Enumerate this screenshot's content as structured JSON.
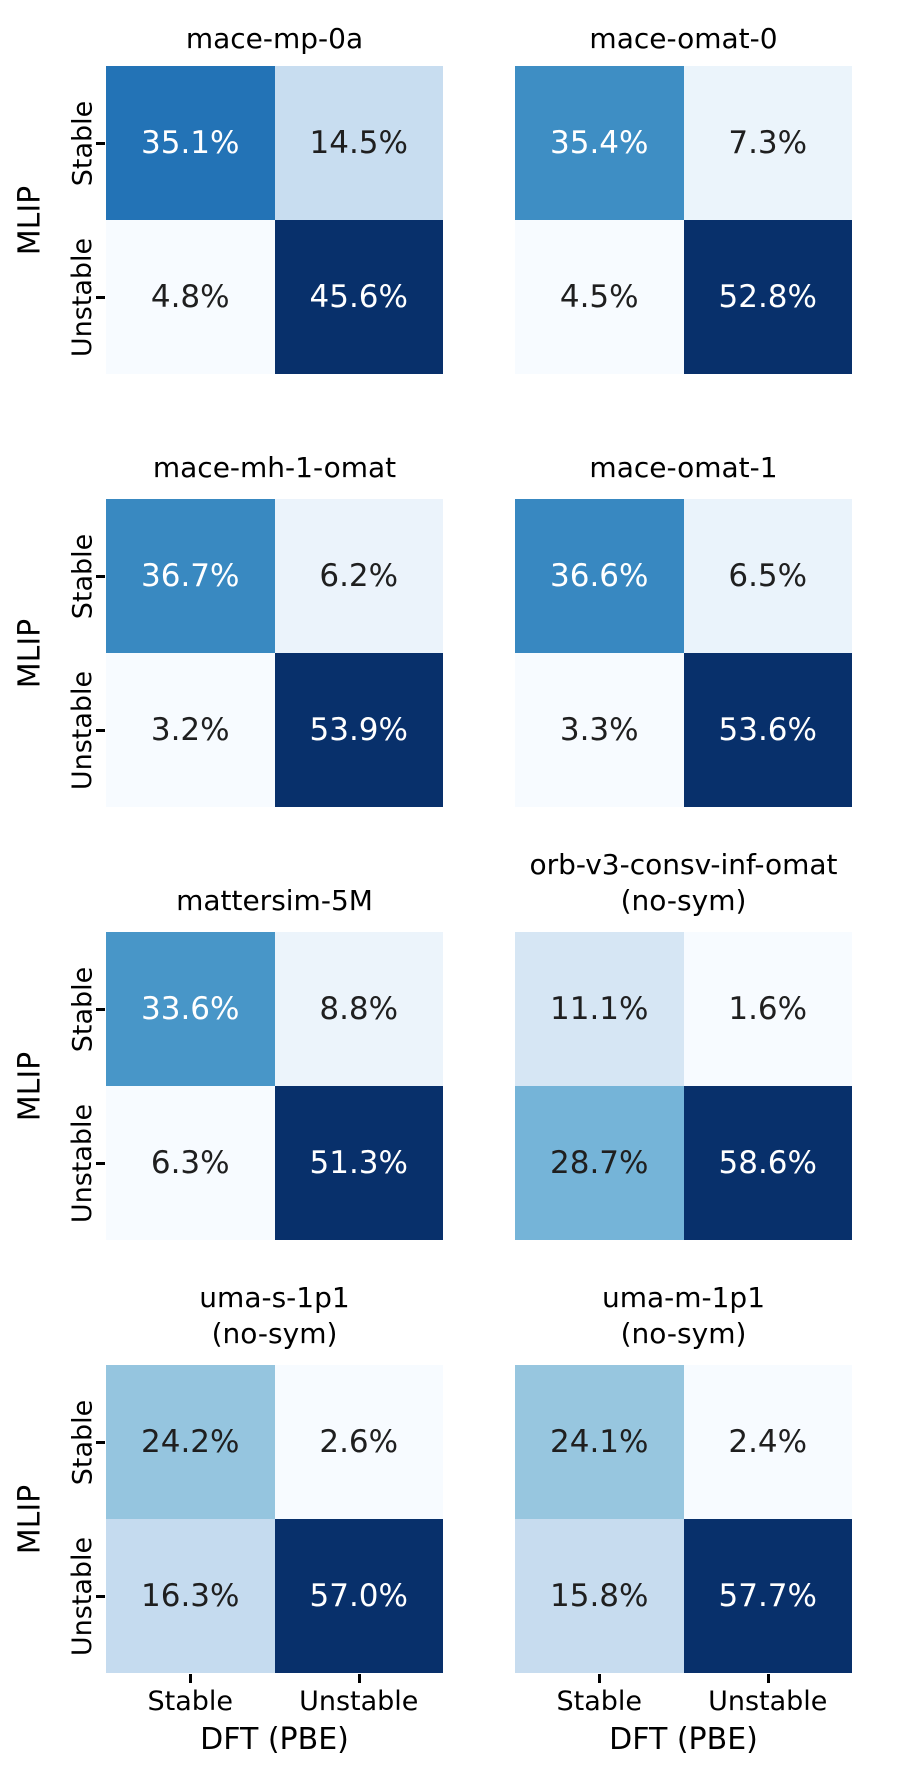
{
  "figure": {
    "name": "MLIP vs DFT stability confusion matrices"
  },
  "axes": {
    "xlabel": "DFT (PBE)",
    "ylabel": "MLIP",
    "xtick_labels": [
      "Stable",
      "Unstable"
    ],
    "ytick_labels": [
      "Stable",
      "Unstable"
    ]
  },
  "colors": {
    "background": "#ffffff",
    "text": "#000000",
    "tick_color": "#000000",
    "cell_text_dark": "#1f1f1f",
    "cell_text_light": "#ffffff",
    "colormap": "Blues",
    "blues_anchors": [
      "#f7fbff",
      "#deebf7",
      "#c6dbef",
      "#9ecae1",
      "#6baed6",
      "#4292c6",
      "#2171b5",
      "#08519c",
      "#08306b"
    ]
  },
  "chart_data": [
    {
      "type": "heatmap",
      "title": "mace-mp-0a",
      "subtitle": "",
      "values": [
        [
          35.1,
          14.5
        ],
        [
          4.8,
          45.6
        ]
      ],
      "unit": "%",
      "normalization": "per_matrix_minmax"
    },
    {
      "type": "heatmap",
      "title": "mace-omat-0",
      "subtitle": "",
      "values": [
        [
          35.4,
          7.3
        ],
        [
          4.5,
          52.8
        ]
      ],
      "unit": "%",
      "normalization": "per_matrix_minmax"
    },
    {
      "type": "heatmap",
      "title": "mace-mh-1-omat",
      "subtitle": "",
      "values": [
        [
          36.7,
          6.2
        ],
        [
          3.2,
          53.9
        ]
      ],
      "unit": "%",
      "normalization": "per_matrix_minmax"
    },
    {
      "type": "heatmap",
      "title": "mace-omat-1",
      "subtitle": "",
      "values": [
        [
          36.6,
          6.5
        ],
        [
          3.3,
          53.6
        ]
      ],
      "unit": "%",
      "normalization": "per_matrix_minmax"
    },
    {
      "type": "heatmap",
      "title": "mattersim-5M",
      "subtitle": "",
      "values": [
        [
          33.6,
          8.8
        ],
        [
          6.3,
          51.3
        ]
      ],
      "unit": "%",
      "normalization": "per_matrix_minmax"
    },
    {
      "type": "heatmap",
      "title": "orb-v3-consv-inf-omat",
      "subtitle": "(no-sym)",
      "values": [
        [
          11.1,
          1.6
        ],
        [
          28.7,
          58.6
        ]
      ],
      "unit": "%",
      "normalization": "per_matrix_minmax"
    },
    {
      "type": "heatmap",
      "title": "uma-s-1p1",
      "subtitle": "(no-sym)",
      "values": [
        [
          24.2,
          2.6
        ],
        [
          16.3,
          57.0
        ]
      ],
      "unit": "%",
      "normalization": "per_matrix_minmax"
    },
    {
      "type": "heatmap",
      "title": "uma-m-1p1",
      "subtitle": "(no-sym)",
      "values": [
        [
          24.1,
          2.4
        ],
        [
          15.8,
          57.7
        ]
      ],
      "unit": "%",
      "normalization": "per_matrix_minmax"
    }
  ]
}
